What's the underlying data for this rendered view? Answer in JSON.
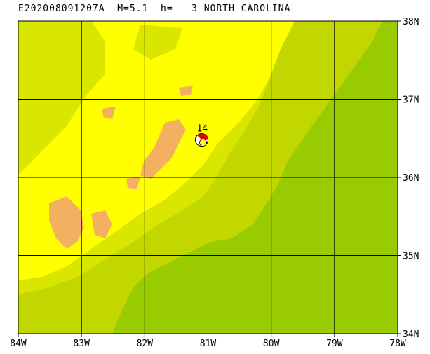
{
  "title": "E202008091207A  M=5.1  h=   3 NORTH CAROLINA",
  "event": {
    "id": "E202008091207A",
    "magnitude": "M=5.1",
    "depth_label": "h=",
    "depth": "3",
    "region": "NORTH CAROLINA",
    "station_label": "14",
    "lon": -81.1,
    "lat": 36.48
  },
  "map": {
    "lon_range": [
      -84,
      -78
    ],
    "lat_range": [
      34,
      38
    ],
    "lon_ticks": [
      "84W",
      "83W",
      "82W",
      "81W",
      "80W",
      "79W",
      "78W"
    ],
    "lat_ticks": [
      "34N",
      "35N",
      "36N",
      "37N",
      "38N"
    ],
    "colors": {
      "low_green": "#99cc00",
      "mid_green": "#c2d600",
      "yellow_green": "#d9e600",
      "yellow": "#ffff00",
      "peak_orange": "#f2b060",
      "beach_red": "#e60000",
      "beach_yellow": "#ffff33",
      "grid": "#000000"
    }
  }
}
